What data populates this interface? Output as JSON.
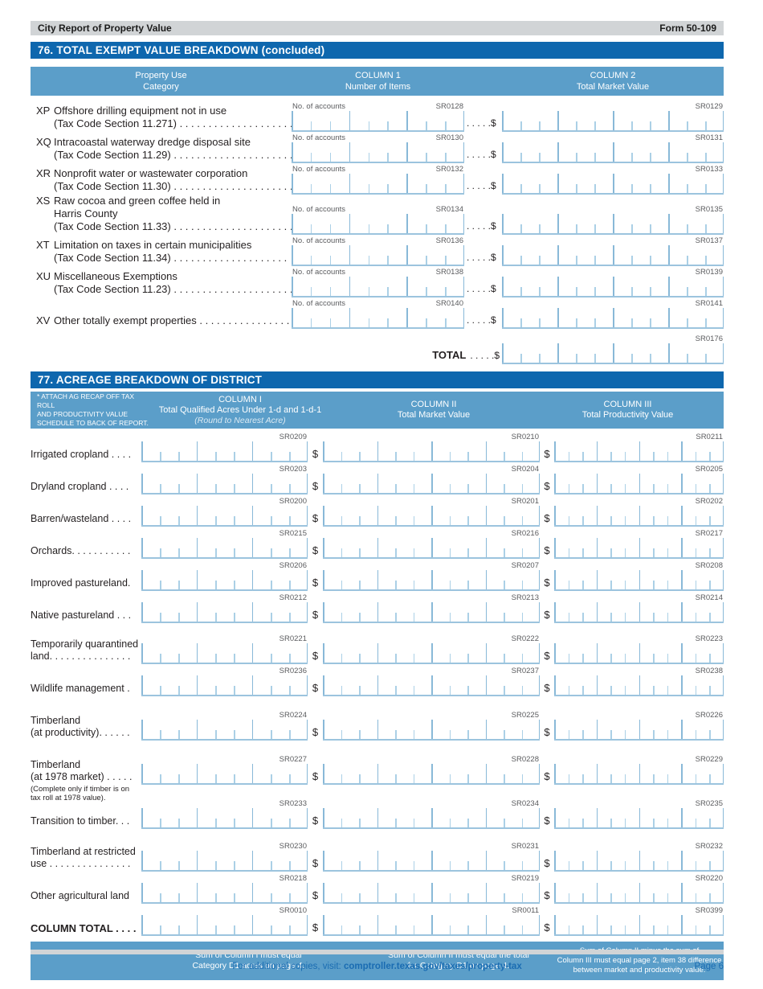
{
  "page": {
    "header_left": "City Report of Property Value",
    "header_right": "Form 50-109",
    "footer_pre": "For additional copies, visit: ",
    "footer_link": "comptroller.texas.gov/taxes/property-tax",
    "footer_page": "Page 6"
  },
  "colors": {
    "section_bar_blue": "#0e67ae",
    "column_header_blue": "#5b9ec9",
    "comb_line_blue": "#9cc4de",
    "topbar_gray": "#d1d4d6",
    "footer_link_blue": "#1a6cb2"
  },
  "section76": {
    "title": "76. TOTAL EXEMPT VALUE BREAKDOWN (concluded)",
    "columns": {
      "c0_line1": "Property Use",
      "c0_line2": "Category",
      "c1_line1": "COLUMN 1",
      "c1_line2": "Number of Items",
      "c2_line1": "COLUMN 2",
      "c2_line2": "Total Market Value"
    },
    "accounts_label": "No. of accounts",
    "leader_dollar": ". . . . .$",
    "rows": [
      {
        "code": "XP",
        "lines": [
          "Offshore drilling equipment not in use",
          "(Tax Code Section 11.271) . . . . . . . . . . . . . . . . . . . ."
        ],
        "sr_accounts": "SR0128",
        "sr_value": "SR0129"
      },
      {
        "code": "XQ",
        "lines": [
          "Intracoastal waterway dredge disposal site",
          "(Tax Code Section 11.29) . . . . . . . . . . . . . . . . . . . . ."
        ],
        "sr_accounts": "SR0130",
        "sr_value": "SR0131"
      },
      {
        "code": "XR",
        "lines": [
          "Nonprofit water or wastewater corporation",
          "(Tax Code Section 11.30) . . . . . . . . . . . . . . . . . . . . ."
        ],
        "sr_accounts": "SR0132",
        "sr_value": "SR0133"
      },
      {
        "code": "XS",
        "lines": [
          "Raw cocoa and green coffee held in",
          "Harris County",
          "(Tax Code Section 11.33) . . . . . . . . . . . . . . . . . . . . ."
        ],
        "sr_accounts": "SR0134",
        "sr_value": "SR0135"
      },
      {
        "code": "XT",
        "lines": [
          "Limitation on taxes in certain municipalities",
          "(Tax Code Section 11.34) . . . . . . . . . . . . . . . . . . . ."
        ],
        "sr_accounts": "SR0136",
        "sr_value": "SR0137"
      },
      {
        "code": "XU",
        "lines": [
          "Miscellaneous Exemptions",
          "(Tax Code Section 11.23) . . . . . . . . . . . . . . . . . . . . ."
        ],
        "sr_accounts": "SR0138",
        "sr_value": "SR0139"
      },
      {
        "code": "XV",
        "lines": [
          "Other totally exempt properties . . . . . . . . . . . . . . . . ."
        ],
        "sr_accounts": "SR0140",
        "sr_value": "SR0141"
      }
    ],
    "total": {
      "label": "TOTAL",
      "leader_dollar": ". . . . .$",
      "sr": "SR0176"
    }
  },
  "section77": {
    "title": "77. ACREAGE BREAKDOWN OF DISTRICT",
    "header_note_lines": [
      "* ATTACH AG RECAP OFF TAX ROLL",
      "AND PRODUCTIVITY VALUE",
      "SCHEDULE TO BACK OF REPORT."
    ],
    "col1_line1": "COLUMN I",
    "col1_line2": "Total Qualified Acres Under 1-d and 1-d-1",
    "col1_line3": "(Round to Nearest Acre)",
    "col2_line1": "COLUMN II",
    "col2_line2": "Total Market Value",
    "col3_line1": "COLUMN  III",
    "col3_line2": "Total Productivity Value",
    "dollar_sign": "$",
    "rows": [
      {
        "label_lines": [
          "Irrigated cropland . . . ."
        ],
        "sr_acres": "SR0209",
        "sr_market": "SR0210",
        "sr_productivity": "SR0211"
      },
      {
        "label_lines": [
          "Dryland cropland  . . . ."
        ],
        "sr_acres": "SR0203",
        "sr_market": "SR0204",
        "sr_productivity": "SR0205"
      },
      {
        "label_lines": [
          "Barren/wasteland . . . ."
        ],
        "sr_acres": "SR0200",
        "sr_market": "SR0201",
        "sr_productivity": "SR0202"
      },
      {
        "label_lines": [
          "Orchards. . . . . . . . . . ."
        ],
        "sr_acres": "SR0215",
        "sr_market": "SR0216",
        "sr_productivity": "SR0217"
      },
      {
        "label_lines": [
          "Improved pastureland."
        ],
        "sr_acres": "SR0206",
        "sr_market": "SR0207",
        "sr_productivity": "SR0208"
      },
      {
        "label_lines": [
          "Native pastureland . . ."
        ],
        "sr_acres": "SR0212",
        "sr_market": "SR0213",
        "sr_productivity": "SR0214"
      },
      {
        "label_lines": [
          "Temporarily quarantined",
          "land. . . . . . . . . . . . . . ."
        ],
        "sr_acres": "SR0221",
        "sr_market": "SR0222",
        "sr_productivity": "SR0223"
      },
      {
        "label_lines": [
          "Wildlife management ."
        ],
        "sr_acres": "SR0236",
        "sr_market": "SR0237",
        "sr_productivity": "SR0238"
      },
      {
        "label_lines": [
          "Timberland",
          "(at productivity). . . . . ."
        ],
        "sr_acres": "SR0224",
        "sr_market": "SR0225",
        "sr_productivity": "SR0226"
      },
      {
        "label_lines": [
          "Timberland",
          "(at 1978 market) . . . . ."
        ],
        "note_lines": [
          "(Complete only if timber is on",
          "tax roll at 1978 value)."
        ],
        "sr_acres": "SR0227",
        "sr_market": "SR0228",
        "sr_productivity": "SR0229"
      },
      {
        "label_lines": [
          "Transition to timber. . ."
        ],
        "sr_acres": "SR0233",
        "sr_market": "SR0234",
        "sr_productivity": "SR0235"
      },
      {
        "label_lines": [
          "Timberland at restricted",
          "use . . . . . . . . . . . . . . ."
        ],
        "sr_acres": "SR0230",
        "sr_market": "SR0231",
        "sr_productivity": "SR0232"
      },
      {
        "label_lines": [
          "Other agricultural land"
        ],
        "sr_acres": "SR0218",
        "sr_market": "SR0219",
        "sr_productivity": "SR0220"
      },
      {
        "label_lines": [
          "COLUMN TOTAL . . . ."
        ],
        "bold": true,
        "sr_acres": "SR0010",
        "sr_market": "SR0011",
        "sr_productivity": "SR0399"
      }
    ],
    "footer_notes": [
      [
        "Sum of Column I must equal",
        "Category D1 acres on page 4."
      ],
      [
        "Sum of Column II must equal the total",
        "for Category D1 on page 4."
      ],
      [
        "Sum of Column II minus the sum of",
        "Column III must equal page 2, item 38 difference",
        "between market and productivity value."
      ]
    ]
  }
}
